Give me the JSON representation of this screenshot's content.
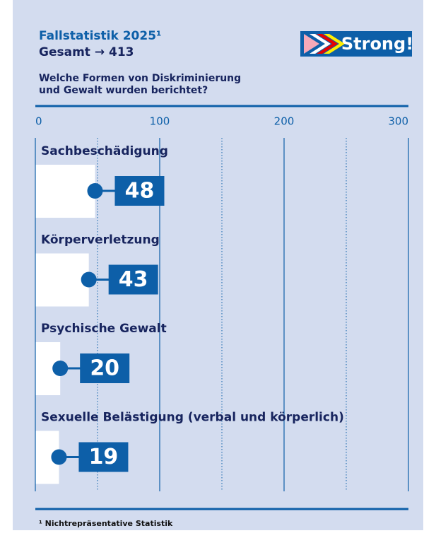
{
  "chart_data": {
    "type": "bar",
    "orientation": "horizontal",
    "title": "Fallstatistik 2025¹",
    "subtitle": "Gesamt → 413",
    "question": [
      "Welche Formen von Diskriminierung",
      "und Gewalt wurden berichtet?"
    ],
    "logo": "Strong!",
    "categories": [
      "Sachbeschädigung",
      "Körperverletzung",
      "Psychische Gewalt",
      "Sexuelle Belästigung (verbal und körperlich)"
    ],
    "values": [
      48,
      43,
      20,
      19
    ],
    "color": "#0d5fa8",
    "bar_color": "#ffffff",
    "xlim": [
      0,
      300
    ],
    "xticks": [
      0,
      100,
      200,
      300
    ],
    "minor_xticks": [
      50,
      150,
      250
    ],
    "grid": true,
    "footnote": "¹ Nichtrepräsentative Statistik"
  }
}
